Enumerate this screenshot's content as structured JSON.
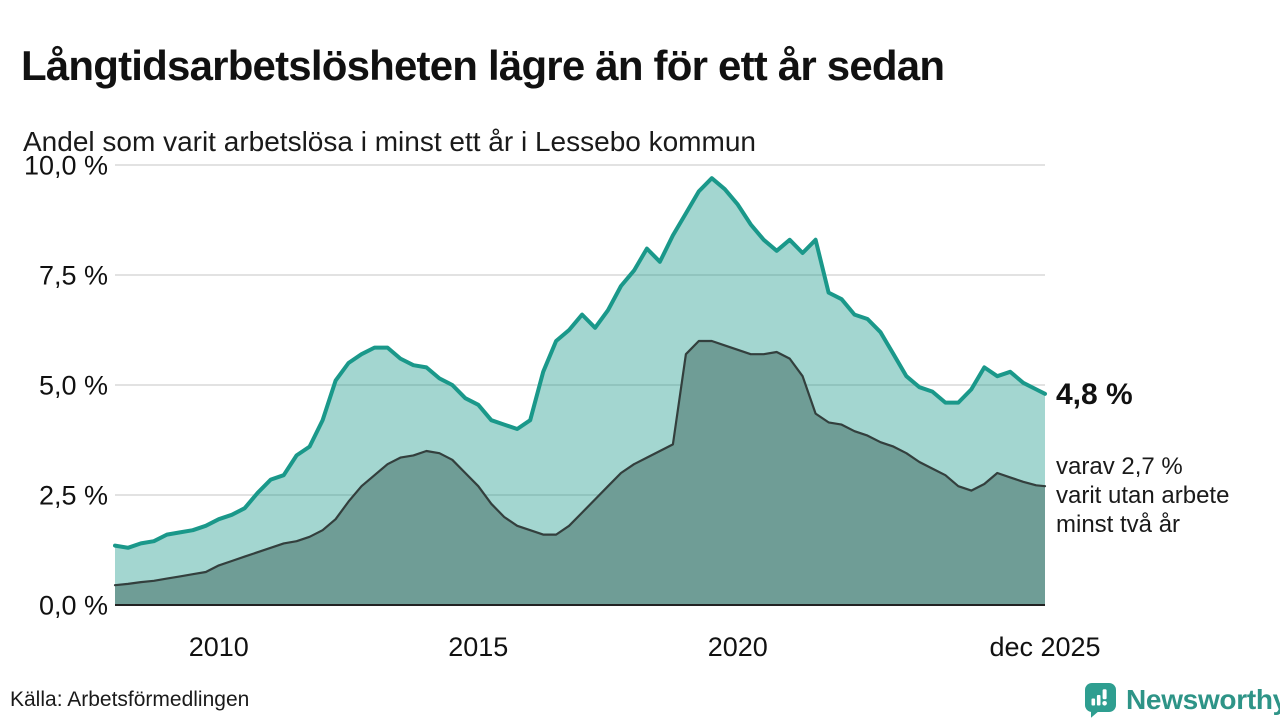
{
  "chart_data": {
    "type": "area",
    "title": "Långtidsarbetslösheten lägre än för ett år sedan",
    "subtitle": "Andel som varit arbetslösa i minst ett år i Lessebo kommun",
    "xlim": [
      2008.04,
      2025.96
    ],
    "ylim": [
      0,
      10
    ],
    "x_start": 2008.04,
    "x_step": 0.25,
    "x_end": 2025.96,
    "grid": true,
    "legend_position": "none-direct-labels",
    "y_ticks": [
      {
        "v": 0,
        "label": "0,0 %"
      },
      {
        "v": 2.5,
        "label": "2,5 %"
      },
      {
        "v": 5,
        "label": "5,0 %"
      },
      {
        "v": 7.5,
        "label": "7,5 %"
      },
      {
        "v": 10,
        "label": "10,0 %"
      }
    ],
    "x_ticks": [
      {
        "v": 2010.04,
        "label": "2010"
      },
      {
        "v": 2015.04,
        "label": "2015"
      },
      {
        "v": 2020.04,
        "label": "2020"
      },
      {
        "v": 2025.96,
        "label": "dec 2025"
      }
    ],
    "series": [
      {
        "name": "Andel som varit arbetslösa i minst ett år",
        "line_color": "#1a988a",
        "fill_color": "rgba(26,152,138,0.40)",
        "line_width": 4,
        "values": [
          1.35,
          1.3,
          1.4,
          1.45,
          1.6,
          1.65,
          1.7,
          1.8,
          1.95,
          2.05,
          2.2,
          2.55,
          2.85,
          2.95,
          3.4,
          3.6,
          4.2,
          5.1,
          5.5,
          5.7,
          5.85,
          5.85,
          5.6,
          5.45,
          5.4,
          5.15,
          5.0,
          4.7,
          4.55,
          4.2,
          4.1,
          4.0,
          4.2,
          5.3,
          6.0,
          6.25,
          6.6,
          6.3,
          6.7,
          7.25,
          7.6,
          8.1,
          7.8,
          8.4,
          8.9,
          9.4,
          9.7,
          9.45,
          9.1,
          8.65,
          8.3,
          8.05,
          8.3,
          8.0,
          8.3,
          7.1,
          6.95,
          6.6,
          6.5,
          6.2,
          5.7,
          5.2,
          4.95,
          4.85,
          4.6,
          4.6,
          4.9,
          5.4,
          5.2,
          5.3,
          5.05,
          4.9,
          4.8
        ]
      },
      {
        "name": "varav varit utan arbete minst två år",
        "line_color": "#333f3d",
        "fill_color": "#6f9d96",
        "line_width": 2.2,
        "values": [
          0.45,
          0.48,
          0.52,
          0.55,
          0.6,
          0.65,
          0.7,
          0.75,
          0.9,
          1.0,
          1.1,
          1.2,
          1.3,
          1.4,
          1.45,
          1.55,
          1.7,
          1.95,
          2.35,
          2.7,
          2.95,
          3.2,
          3.35,
          3.4,
          3.5,
          3.45,
          3.3,
          3.0,
          2.7,
          2.3,
          2.0,
          1.8,
          1.7,
          1.6,
          1.6,
          1.8,
          2.1,
          2.4,
          2.7,
          3.0,
          3.2,
          3.35,
          3.5,
          3.65,
          5.7,
          6.0,
          6.0,
          5.9,
          5.8,
          5.7,
          5.7,
          5.75,
          5.6,
          5.2,
          4.35,
          4.15,
          4.1,
          3.95,
          3.85,
          3.7,
          3.6,
          3.45,
          3.25,
          3.1,
          2.95,
          2.7,
          2.6,
          2.75,
          3.0,
          2.9,
          2.8,
          2.72,
          2.7
        ]
      }
    ],
    "end_labels": {
      "primary": "4,8 %",
      "secondary": "varav 2,7 %\nvarit utan arbete\nminst två år"
    }
  },
  "colors": {
    "accent": "#1a988a",
    "grid": "#d8d8d8",
    "axis": "#222222",
    "text": "#111111",
    "brand": "#2e9487"
  },
  "footer": {
    "source": "Källa: Arbetsförmedlingen",
    "brand": "Newsworthy"
  }
}
